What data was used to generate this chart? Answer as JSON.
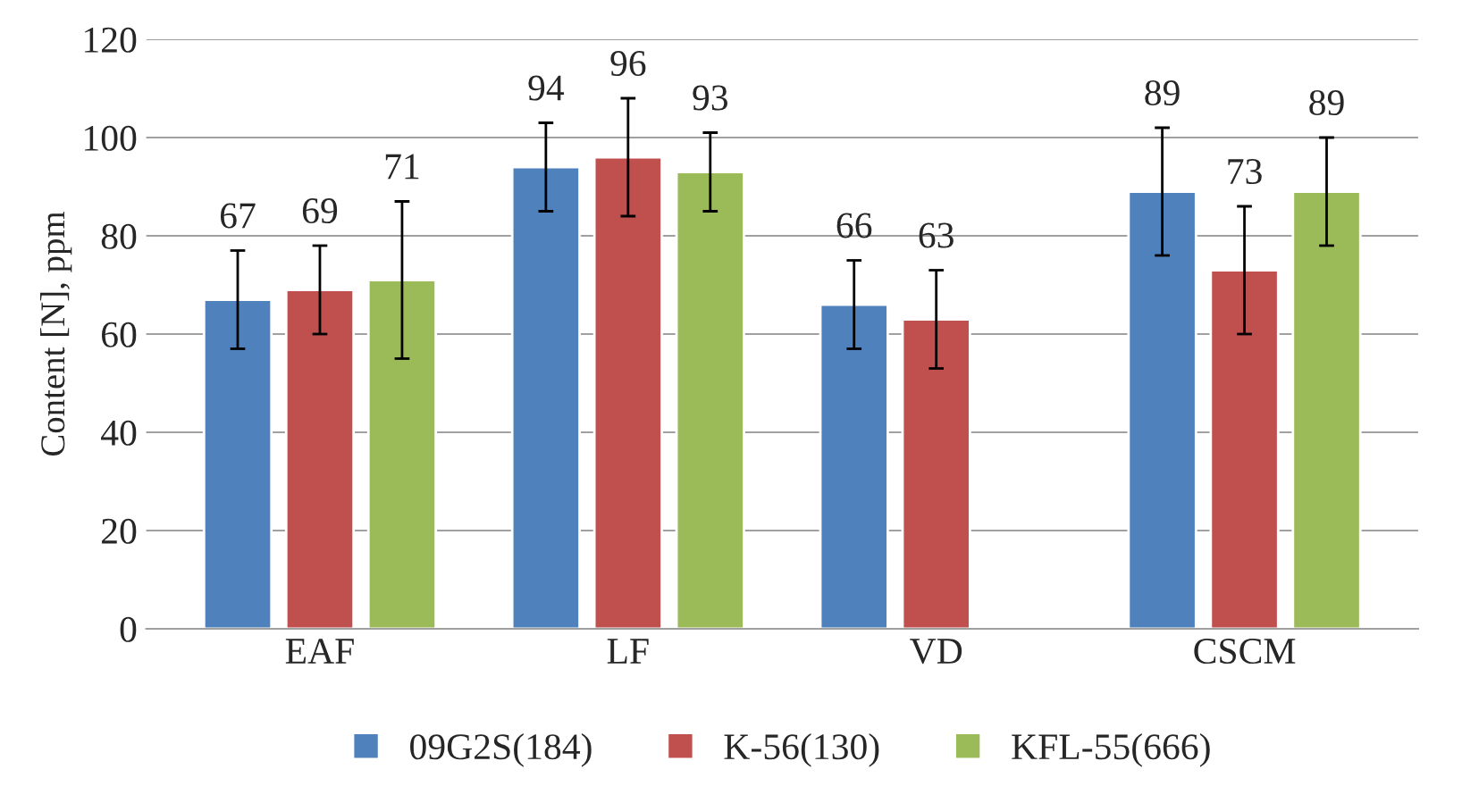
{
  "chart_data": {
    "type": "bar",
    "ylabel": "Content [N], ppm",
    "categories": [
      "EAF",
      "LF",
      "VD",
      "CSCM"
    ],
    "series": [
      {
        "name": "09G2S(184)",
        "color": "#4f81bd",
        "values": [
          67,
          94,
          66,
          89
        ],
        "errors": [
          10,
          9,
          9,
          13
        ]
      },
      {
        "name": "K-56(130)",
        "color": "#c0504d",
        "values": [
          69,
          96,
          63,
          73
        ],
        "errors": [
          9,
          12,
          10,
          13
        ]
      },
      {
        "name": "KFL-55(666)",
        "color": "#9bbb59",
        "values": [
          71,
          93,
          null,
          89
        ],
        "errors": [
          16,
          8,
          null,
          11
        ]
      }
    ],
    "ylim": [
      0,
      120
    ],
    "yticks": [
      0,
      20,
      40,
      60,
      80,
      100,
      120
    ],
    "grid": "y",
    "legend": "bottom",
    "data_labels": true
  }
}
